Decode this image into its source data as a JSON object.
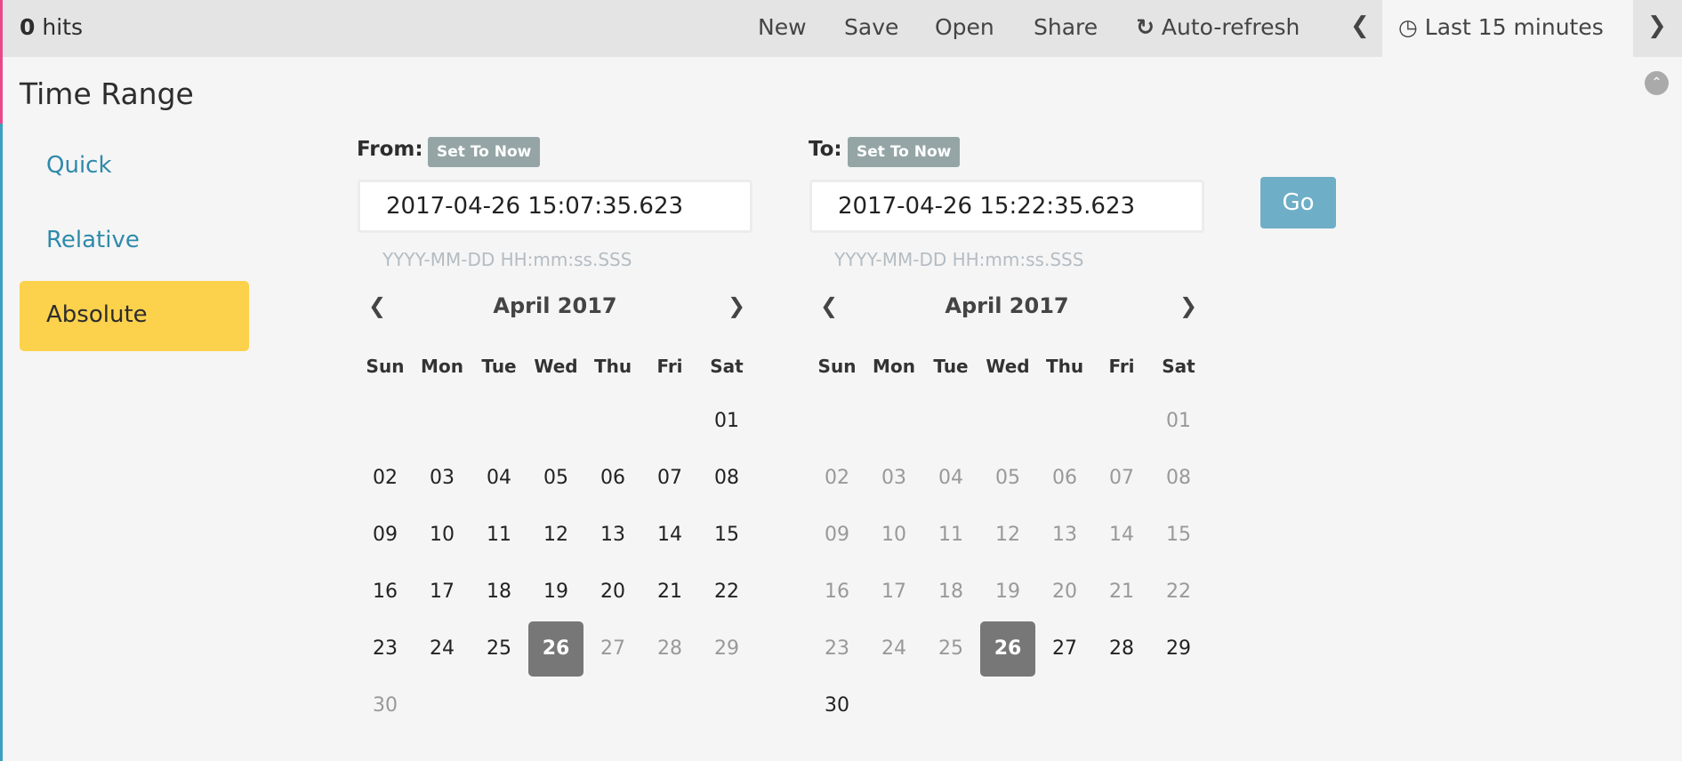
{
  "topbar": {
    "hits_count": "0",
    "hits_label": "hits",
    "nav": [
      "New",
      "Save",
      "Open",
      "Share",
      "Auto-refresh"
    ],
    "time_label": "Last 15 minutes",
    "icons": [
      "refresh-icon",
      "clock-icon",
      "chevron-left-icon",
      "chevron-right-icon"
    ]
  },
  "panel": {
    "title": "Time Range",
    "modes": [
      "Quick",
      "Relative",
      "Absolute"
    ],
    "active_mode": "Absolute"
  },
  "from": {
    "label": "From:",
    "set_now": "Set To Now",
    "value": "2017-04-26 15:07:35.623",
    "hint": "YYYY-MM-DD HH:mm:ss.SSS"
  },
  "to": {
    "label": "To:",
    "set_now": "Set To Now",
    "value": "2017-04-26 15:22:35.623",
    "hint": "YYYY-MM-DD HH:mm:ss.SSS"
  },
  "go_label": "Go",
  "colors": {
    "accent_link": "#2f8aab",
    "active_mode": "#fcd14c",
    "go": "#6eaec7",
    "selected_day": "#777777"
  },
  "calendars": [
    {
      "month": "April 2017",
      "weekdays": [
        "Sun",
        "Mon",
        "Tue",
        "Wed",
        "Thu",
        "Fri",
        "Sat"
      ],
      "first_weekday_index": 6,
      "days": 30,
      "selected": 26,
      "enabled_range": [
        1,
        26
      ]
    },
    {
      "month": "April 2017",
      "weekdays": [
        "Sun",
        "Mon",
        "Tue",
        "Wed",
        "Thu",
        "Fri",
        "Sat"
      ],
      "first_weekday_index": 6,
      "days": 30,
      "selected": 26,
      "enabled_range": [
        26,
        30
      ]
    }
  ]
}
